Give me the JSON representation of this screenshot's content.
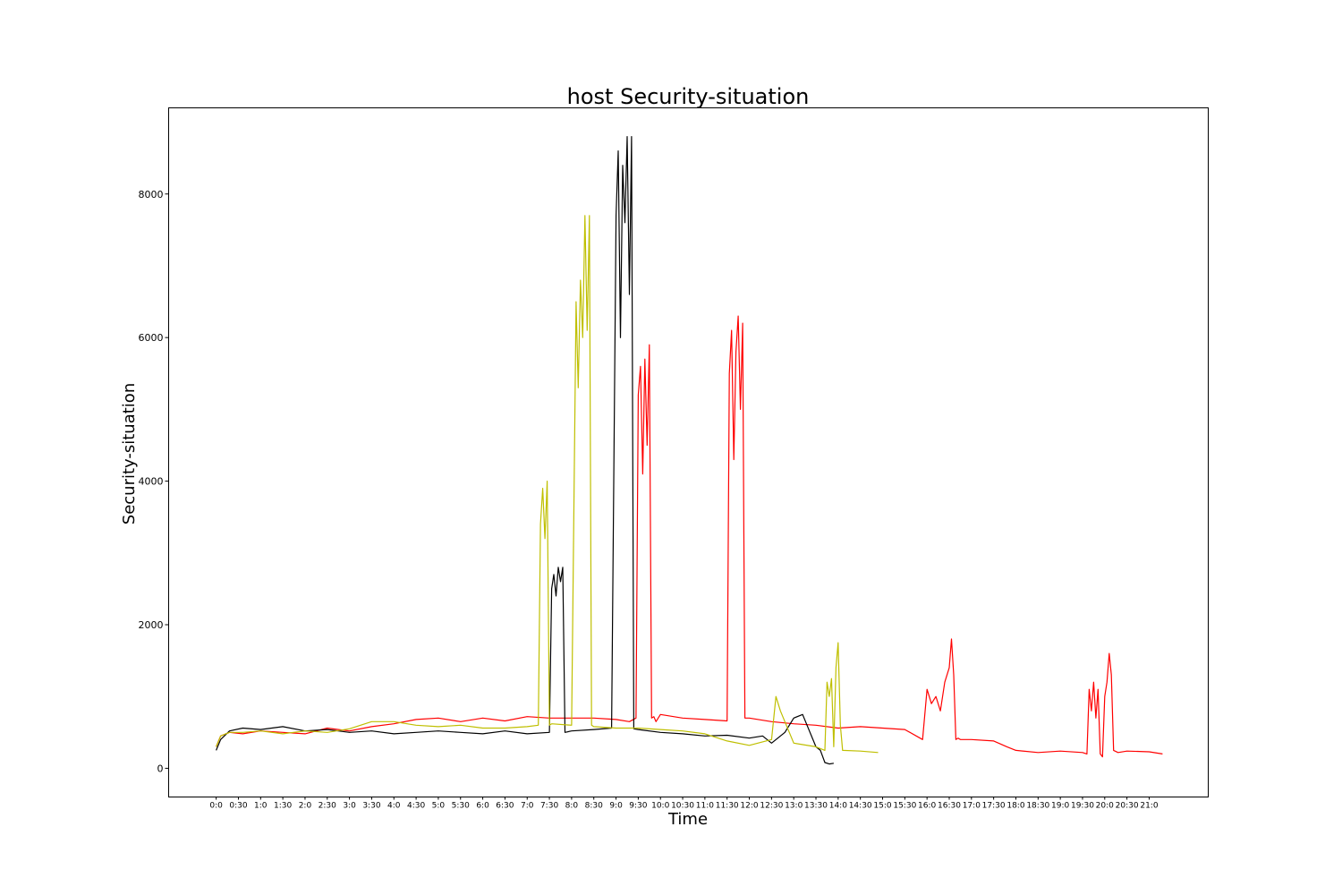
{
  "chart_data": {
    "type": "line",
    "title": "host Security-situation",
    "xlabel": "Time",
    "ylabel": "Security-situation",
    "xlim": [
      -1.07,
      22.33
    ],
    "ylim": [
      -400,
      9200
    ],
    "y_ticks": [
      0,
      2000,
      4000,
      6000,
      8000
    ],
    "x_ticks": [
      {
        "x": 0.0,
        "label": "0:0"
      },
      {
        "x": 0.5,
        "label": "0:30"
      },
      {
        "x": 1.0,
        "label": "1:0"
      },
      {
        "x": 1.5,
        "label": "1:30"
      },
      {
        "x": 2.0,
        "label": "2:0"
      },
      {
        "x": 2.5,
        "label": "2:30"
      },
      {
        "x": 3.0,
        "label": "3:0"
      },
      {
        "x": 3.5,
        "label": "3:30"
      },
      {
        "x": 4.0,
        "label": "4:0"
      },
      {
        "x": 4.5,
        "label": "4:30"
      },
      {
        "x": 5.0,
        "label": "5:0"
      },
      {
        "x": 5.5,
        "label": "5:30"
      },
      {
        "x": 6.0,
        "label": "6:0"
      },
      {
        "x": 6.5,
        "label": "6:30"
      },
      {
        "x": 7.0,
        "label": "7:0"
      },
      {
        "x": 7.5,
        "label": "7:30"
      },
      {
        "x": 8.0,
        "label": "8:0"
      },
      {
        "x": 8.5,
        "label": "8:30"
      },
      {
        "x": 9.0,
        "label": "9:0"
      },
      {
        "x": 9.5,
        "label": "9:30"
      },
      {
        "x": 10.0,
        "label": "10:0"
      },
      {
        "x": 10.5,
        "label": "10:30"
      },
      {
        "x": 11.0,
        "label": "11:0"
      },
      {
        "x": 11.5,
        "label": "11:30"
      },
      {
        "x": 12.0,
        "label": "12:0"
      },
      {
        "x": 12.5,
        "label": "12:30"
      },
      {
        "x": 13.0,
        "label": "13:0"
      },
      {
        "x": 13.5,
        "label": "13:30"
      },
      {
        "x": 14.0,
        "label": "14:0"
      },
      {
        "x": 14.5,
        "label": "14:30"
      },
      {
        "x": 15.0,
        "label": "15:0"
      },
      {
        "x": 15.5,
        "label": "15:30"
      },
      {
        "x": 16.0,
        "label": "16:0"
      },
      {
        "x": 16.5,
        "label": "16:30"
      },
      {
        "x": 17.0,
        "label": "17:0"
      },
      {
        "x": 17.5,
        "label": "17:30"
      },
      {
        "x": 18.0,
        "label": "18:0"
      },
      {
        "x": 18.5,
        "label": "18:30"
      },
      {
        "x": 19.0,
        "label": "19:0"
      },
      {
        "x": 19.5,
        "label": "19:30"
      },
      {
        "x": 20.0,
        "label": "20:0"
      },
      {
        "x": 20.5,
        "label": "20:30"
      },
      {
        "x": 21.0,
        "label": "21:0"
      }
    ],
    "grid": false,
    "legend": "none",
    "series": [
      {
        "color": "#ff0000",
        "x": [
          0.0,
          0.1,
          0.3,
          0.6,
          1.0,
          1.5,
          2.0,
          2.5,
          3.0,
          3.5,
          4.0,
          4.5,
          5.0,
          5.5,
          6.0,
          6.5,
          7.0,
          7.5,
          8.0,
          8.5,
          9.0,
          9.3,
          9.45,
          9.5,
          9.55,
          9.6,
          9.65,
          9.7,
          9.75,
          9.8,
          9.85,
          9.9,
          9.95,
          10.0,
          10.5,
          11.0,
          11.5,
          11.55,
          11.6,
          11.65,
          11.7,
          11.75,
          11.8,
          11.85,
          11.9,
          12.0,
          12.5,
          13.0,
          13.5,
          14.0,
          14.5,
          15.0,
          15.5,
          15.9,
          16.0,
          16.1,
          16.2,
          16.3,
          16.4,
          16.5,
          16.55,
          16.6,
          16.65,
          16.7,
          16.75,
          17.0,
          17.5,
          17.8,
          18.0,
          18.5,
          19.0,
          19.5,
          19.6,
          19.65,
          19.7,
          19.75,
          19.8,
          19.85,
          19.9,
          19.95,
          20.0,
          20.05,
          20.1,
          20.15,
          20.2,
          20.3,
          20.5,
          21.0,
          21.3
        ],
        "y": [
          300,
          450,
          500,
          480,
          520,
          500,
          480,
          560,
          520,
          580,
          620,
          680,
          700,
          650,
          700,
          660,
          720,
          700,
          700,
          700,
          680,
          650,
          700,
          5200,
          5600,
          4100,
          5700,
          4500,
          5900,
          700,
          720,
          650,
          700,
          750,
          700,
          680,
          660,
          5500,
          6100,
          4300,
          5800,
          6300,
          5000,
          6200,
          700,
          700,
          650,
          620,
          600,
          560,
          580,
          560,
          540,
          400,
          1100,
          900,
          1000,
          800,
          1200,
          1400,
          1800,
          1300,
          400,
          420,
          400,
          400,
          380,
          300,
          250,
          220,
          240,
          220,
          200,
          1100,
          800,
          1200,
          700,
          1100,
          200,
          160,
          1000,
          1200,
          1600,
          1300,
          250,
          220,
          240,
          230,
          200
        ]
      },
      {
        "color": "#000000",
        "x": [
          0.0,
          0.1,
          0.3,
          0.6,
          1.0,
          1.5,
          2.0,
          2.5,
          3.0,
          3.5,
          4.0,
          4.5,
          5.0,
          5.5,
          6.0,
          6.5,
          7.0,
          7.5,
          7.55,
          7.6,
          7.65,
          7.7,
          7.75,
          7.8,
          7.85,
          8.0,
          8.5,
          8.9,
          9.0,
          9.05,
          9.1,
          9.15,
          9.2,
          9.25,
          9.3,
          9.35,
          9.4,
          9.5,
          10.0,
          10.5,
          11.0,
          11.5,
          12.0,
          12.3,
          12.5,
          12.8,
          13.0,
          13.2,
          13.5,
          13.6,
          13.7,
          13.8,
          13.9
        ],
        "y": [
          250,
          400,
          520,
          560,
          540,
          580,
          520,
          540,
          500,
          520,
          480,
          500,
          520,
          500,
          480,
          520,
          480,
          500,
          2500,
          2700,
          2400,
          2800,
          2600,
          2800,
          500,
          520,
          540,
          560,
          7700,
          8600,
          6000,
          8400,
          7600,
          8800,
          6600,
          8800,
          550,
          540,
          500,
          480,
          450,
          460,
          420,
          450,
          350,
          500,
          700,
          750,
          300,
          250,
          80,
          60,
          70
        ]
      },
      {
        "color": "#bfbf00",
        "x": [
          0.0,
          0.1,
          0.3,
          0.6,
          1.0,
          1.5,
          2.0,
          2.5,
          3.0,
          3.5,
          4.0,
          4.5,
          5.0,
          5.5,
          6.0,
          6.5,
          7.0,
          7.25,
          7.3,
          7.35,
          7.4,
          7.45,
          7.5,
          7.55,
          8.0,
          8.1,
          8.15,
          8.2,
          8.25,
          8.3,
          8.35,
          8.4,
          8.45,
          8.5,
          9.0,
          9.5,
          10.0,
          10.5,
          11.0,
          11.5,
          12.0,
          12.5,
          12.6,
          12.7,
          13.0,
          13.5,
          13.7,
          13.75,
          13.8,
          13.85,
          13.9,
          13.95,
          14.0,
          14.05,
          14.1,
          14.5,
          14.9
        ],
        "y": [
          300,
          450,
          500,
          500,
          520,
          480,
          520,
          500,
          550,
          650,
          650,
          600,
          580,
          600,
          560,
          560,
          580,
          600,
          3400,
          3900,
          3200,
          4000,
          600,
          620,
          600,
          6500,
          5300,
          6800,
          6000,
          7700,
          6100,
          7700,
          600,
          580,
          560,
          560,
          540,
          520,
          480,
          380,
          320,
          400,
          1000,
          800,
          350,
          300,
          250,
          1200,
          1000,
          1250,
          300,
          1400,
          1750,
          600,
          250,
          240,
          220
        ]
      }
    ]
  }
}
